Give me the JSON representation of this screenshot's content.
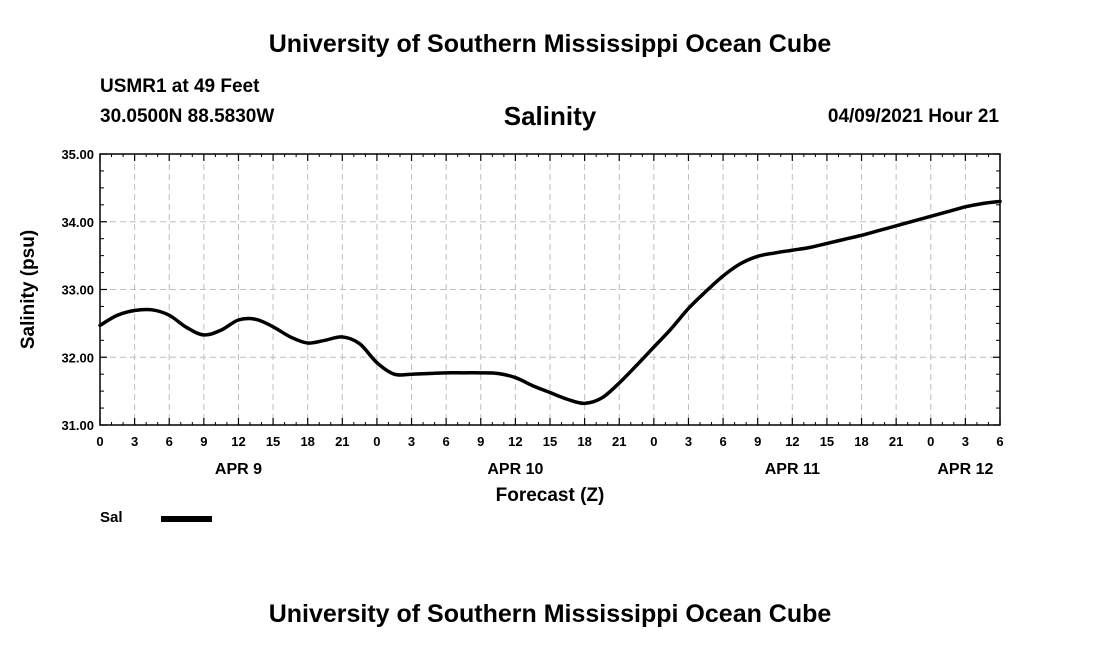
{
  "header": {
    "title": "University of Southern Mississippi Ocean Cube",
    "station": "USMR1 at 49 Feet",
    "coords": "30.0500N  88.5830W",
    "variable": "Salinity",
    "datetime": "04/09/2021 Hour 21"
  },
  "footer": {
    "title": "University of Southern Mississippi Ocean Cube"
  },
  "legend": {
    "label": "Sal",
    "color": "#000000"
  },
  "chart_data": {
    "type": "line",
    "title": "Salinity",
    "xlabel": "Forecast (Z)",
    "ylabel": "Salinity (psu)",
    "ylim": [
      31.0,
      35.0
    ],
    "yticks": [
      "31.00",
      "32.00",
      "33.00",
      "34.00",
      "35.00"
    ],
    "xlim_hours": [
      0,
      78
    ],
    "xtick_labels": [
      "0",
      "3",
      "6",
      "9",
      "12",
      "15",
      "18",
      "21",
      "0",
      "3",
      "6",
      "9",
      "12",
      "15",
      "18",
      "21",
      "0",
      "3",
      "6",
      "9",
      "12",
      "15",
      "18",
      "21",
      "0",
      "3",
      "6"
    ],
    "date_labels": [
      {
        "label": "APR 9",
        "hour": 12
      },
      {
        "label": "APR 10",
        "hour": 36
      },
      {
        "label": "APR 11",
        "hour": 60
      },
      {
        "label": "APR 12",
        "hour": 75
      }
    ],
    "grid": true,
    "series": [
      {
        "name": "Sal",
        "x": [
          0,
          1.5,
          3,
          4.5,
          6,
          7.5,
          9,
          10.5,
          12,
          13.5,
          15,
          16.5,
          18,
          19.5,
          21,
          22.5,
          24,
          25.5,
          27,
          28.5,
          30,
          31.5,
          33,
          34.5,
          36,
          37.5,
          39,
          40.5,
          42,
          43.5,
          45,
          46.5,
          48,
          49.5,
          51,
          52.5,
          54,
          55.5,
          57,
          58.5,
          60,
          61.5,
          63,
          64.5,
          66,
          67.5,
          69,
          70.5,
          72,
          73.5,
          75,
          76.5,
          78
        ],
        "values": [
          32.47,
          32.62,
          32.69,
          32.7,
          32.62,
          32.44,
          32.33,
          32.4,
          32.55,
          32.56,
          32.45,
          32.3,
          32.21,
          32.25,
          32.3,
          32.2,
          31.92,
          31.75,
          31.75,
          31.76,
          31.77,
          31.77,
          31.77,
          31.76,
          31.7,
          31.58,
          31.48,
          31.38,
          31.32,
          31.4,
          31.62,
          31.88,
          32.15,
          32.42,
          32.72,
          32.97,
          33.2,
          33.38,
          33.49,
          33.54,
          33.58,
          33.62,
          33.68,
          33.74,
          33.8,
          33.87,
          33.94,
          34.01,
          34.08,
          34.15,
          34.22,
          34.27,
          34.3
        ]
      }
    ]
  }
}
